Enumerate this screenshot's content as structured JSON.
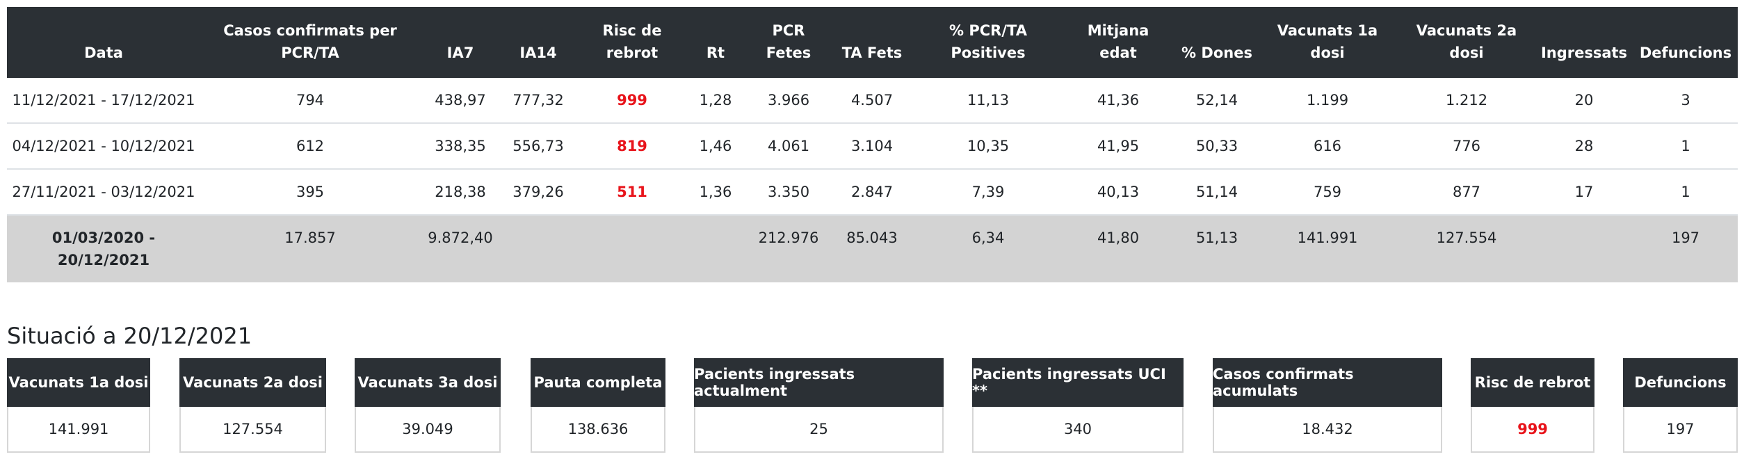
{
  "table": {
    "headers": [
      "Data",
      "Casos confirmats per PCR/TA",
      "IA7",
      "IA14",
      "Risc de rebrot",
      "Rt",
      "PCR Fetes",
      "TA Fets",
      "% PCR/TA Positives",
      "Mitjana edat",
      "% Dones",
      "Vacunats 1a dosi",
      "Vacunats 2a dosi",
      "Ingressats",
      "Defuncions"
    ],
    "rows": [
      [
        "11/12/2021 - 17/12/2021",
        "794",
        "438,97",
        "777,32",
        "999",
        "1,28",
        "3.966",
        "4.507",
        "11,13",
        "41,36",
        "52,14",
        "1.199",
        "1.212",
        "20",
        "3"
      ],
      [
        "04/12/2021 - 10/12/2021",
        "612",
        "338,35",
        "556,73",
        "819",
        "1,46",
        "4.061",
        "3.104",
        "10,35",
        "41,95",
        "50,33",
        "616",
        "776",
        "28",
        "1"
      ],
      [
        "27/11/2021 - 03/12/2021",
        "395",
        "218,38",
        "379,26",
        "511",
        "1,36",
        "3.350",
        "2.847",
        "7,39",
        "40,13",
        "51,14",
        "759",
        "877",
        "17",
        "1"
      ]
    ],
    "total": [
      "01/03/2020 - 20/12/2021",
      "17.857",
      "9.872,40",
      null,
      null,
      null,
      "212.976",
      "85.043",
      "6,34",
      "41,80",
      "51,13",
      "141.991",
      "127.554",
      null,
      "197"
    ]
  },
  "situacio": {
    "title": "Situació a 20/12/2021",
    "cards": [
      {
        "label": "Vacunats 1a dosi",
        "value": "141.991"
      },
      {
        "label": "Vacunats 2a dosi",
        "value": "127.554"
      },
      {
        "label": "Vacunats 3a dosi",
        "value": "39.049"
      },
      {
        "label": "Pauta completa",
        "value": "138.636"
      },
      {
        "label": "Pacients ingressats actualment",
        "value": "25"
      },
      {
        "label": "Pacients ingressats UCI **",
        "value": "340"
      },
      {
        "label": "Casos confirmats acumulats",
        "value": "18.432"
      },
      {
        "label": "Risc de rebrot",
        "value": "999"
      },
      {
        "label": "Defuncions",
        "value": "197"
      }
    ]
  }
}
